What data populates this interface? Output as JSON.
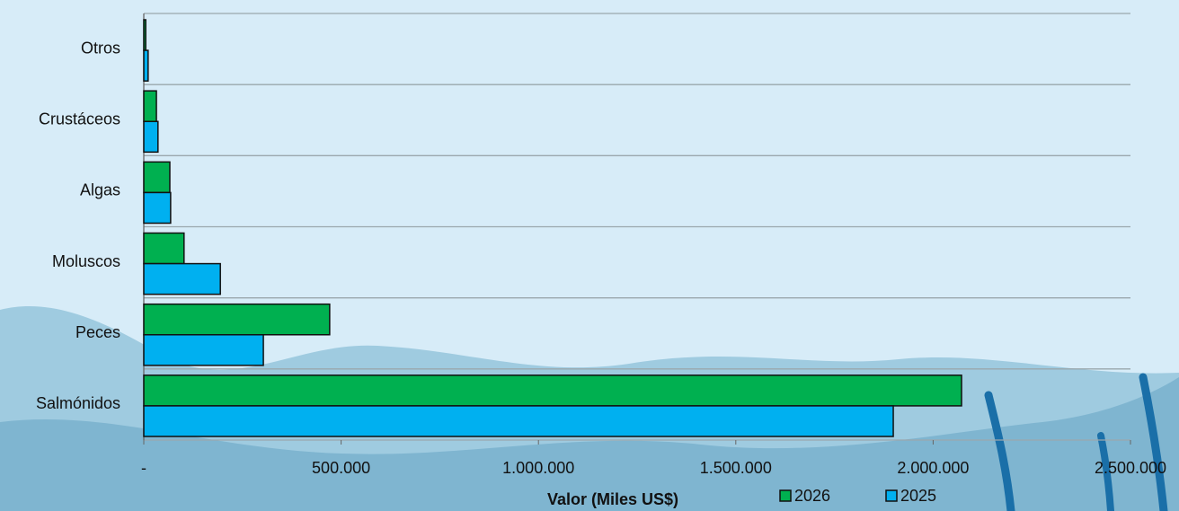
{
  "chart_data": {
    "type": "bar",
    "orientation": "horizontal",
    "x_label": "Valor (Miles US$)",
    "categories": [
      "Otros",
      "Crustáceos",
      "Algas",
      "Moluscos",
      "Peces",
      "Salmónidos"
    ],
    "series": [
      {
        "name": "2026",
        "color": "#00b050",
        "values": [
          5000,
          32000,
          66000,
          102000,
          471000,
          2072000
        ]
      },
      {
        "name": "2025",
        "color": "#00b0f0",
        "values": [
          11000,
          36000,
          68000,
          194000,
          303000,
          1899000
        ]
      }
    ],
    "xlim": [
      0,
      2500000
    ],
    "xticks": [
      {
        "value": 0,
        "label": "-"
      },
      {
        "value": 500000,
        "label": "500.000"
      },
      {
        "value": 1000000,
        "label": "1.000.000"
      },
      {
        "value": 1500000,
        "label": "1.500.000"
      },
      {
        "value": 2000000,
        "label": "2.000.000"
      },
      {
        "value": 2500000,
        "label": "2.500.000"
      }
    ],
    "legend": "bottom"
  }
}
